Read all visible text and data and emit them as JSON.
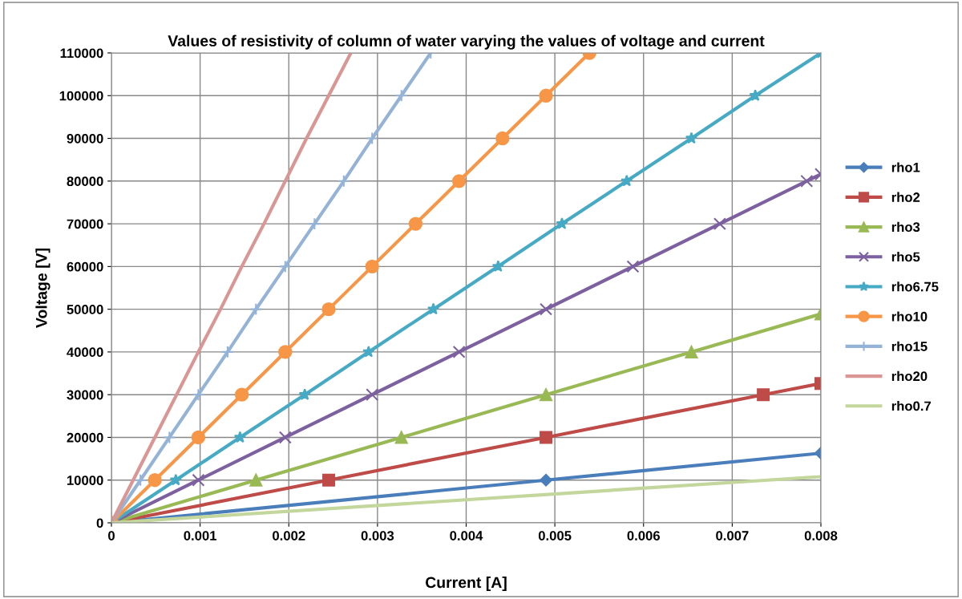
{
  "chart_data": {
    "type": "line",
    "title": "Values of resistivity of column of water varying the values of voltage and current",
    "xlabel": "Current [A]",
    "ylabel": "Voltage [V]",
    "xlim": [
      0,
      0.008
    ],
    "xticks": [
      0,
      0.001,
      0.002,
      0.003,
      0.004,
      0.005,
      0.006,
      0.007,
      0.008
    ],
    "ylim": [
      0,
      110000
    ],
    "yticks": [
      0,
      10000,
      20000,
      30000,
      40000,
      50000,
      60000,
      70000,
      80000,
      90000,
      100000,
      110000
    ],
    "grid": true,
    "legend": "right",
    "line_style": "solid",
    "series": [
      {
        "name": "rho1",
        "color": "#4a7ebb",
        "marker": "diamond",
        "x": [
          0,
          0.0049,
          0.008
        ],
        "values": [
          0,
          10000,
          16300
        ]
      },
      {
        "name": "rho2",
        "color": "#be4b48",
        "marker": "square",
        "x": [
          0,
          0.00245,
          0.0049,
          0.00735,
          0.008
        ],
        "values": [
          0,
          10000,
          20000,
          30000,
          32600
        ]
      },
      {
        "name": "rho3",
        "color": "#98b954",
        "marker": "triangle",
        "x": [
          0,
          0.00163,
          0.00327,
          0.0049,
          0.00654,
          0.008
        ],
        "values": [
          0,
          10000,
          20000,
          30000,
          40000,
          48900
        ]
      },
      {
        "name": "rho5",
        "color": "#7d60a0",
        "marker": "cross",
        "x": [
          0,
          0.00098,
          0.00196,
          0.00294,
          0.00392,
          0.0049,
          0.00588,
          0.00686,
          0.00784,
          0.008
        ],
        "values": [
          0,
          10000,
          20000,
          30000,
          40000,
          50000,
          60000,
          70000,
          80000,
          81600
        ]
      },
      {
        "name": "rho6.75",
        "color": "#46aac5",
        "marker": "star",
        "x": [
          0,
          0.000726,
          0.00145,
          0.00218,
          0.0029,
          0.00363,
          0.00436,
          0.00508,
          0.00581,
          0.00654,
          0.00726,
          0.008
        ],
        "values": [
          0,
          10000,
          20000,
          30000,
          40000,
          50000,
          60000,
          70000,
          80000,
          90000,
          100000,
          110000
        ]
      },
      {
        "name": "rho10",
        "color": "#f79646",
        "marker": "circle",
        "x": [
          0,
          0.00049,
          0.00098,
          0.00147,
          0.00196,
          0.00245,
          0.00294,
          0.00343,
          0.00392,
          0.00441,
          0.0049,
          0.00539
        ],
        "values": [
          0,
          10000,
          20000,
          30000,
          40000,
          50000,
          60000,
          70000,
          80000,
          90000,
          100000,
          110000
        ]
      },
      {
        "name": "rho15",
        "color": "#95b3d7",
        "marker": "plus",
        "x": [
          0,
          0.000327,
          0.000654,
          0.00098,
          0.00131,
          0.00163,
          0.00196,
          0.00229,
          0.00262,
          0.00294,
          0.00327,
          0.0036
        ],
        "values": [
          0,
          10000,
          20000,
          30000,
          40000,
          50000,
          60000,
          70000,
          80000,
          90000,
          100000,
          110000
        ]
      },
      {
        "name": "rho20",
        "color": "#d99694",
        "marker": "none",
        "x": [
          0,
          0.000245,
          0.00049,
          0.000735,
          0.00098,
          0.00123,
          0.00147,
          0.00172,
          0.00196,
          0.0022,
          0.00245,
          0.0027
        ],
        "values": [
          0,
          10000,
          20000,
          30000,
          40000,
          50000,
          60000,
          70000,
          80000,
          90000,
          100000,
          110000
        ]
      },
      {
        "name": "rho0.7",
        "color": "#c3d69b",
        "marker": "none",
        "x": [
          0,
          0.0074,
          0.008
        ],
        "values": [
          0,
          10000,
          10800
        ]
      }
    ]
  }
}
